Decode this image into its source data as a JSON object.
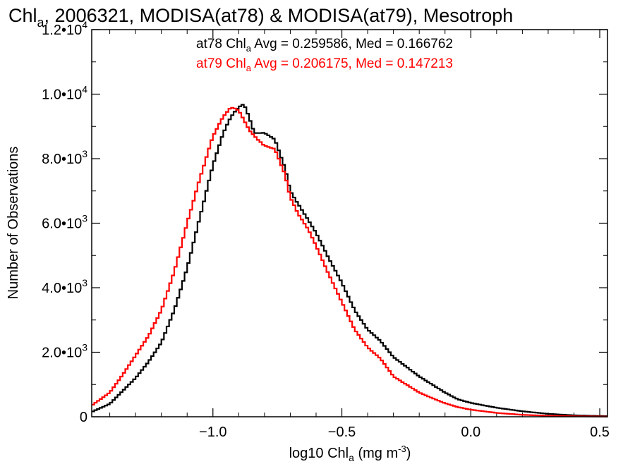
{
  "chart_data": {
    "type": "line",
    "step": true,
    "title": {
      "prefix": "Chl",
      "sub": "a",
      "rest": ", 2006321, MODISA(at78) & MODISA(at79), Mesotroph"
    },
    "xlabel": {
      "prefix": "log10 Chl",
      "sub": "a",
      "mid": " (mg m",
      "sup": "-3",
      "suffix": ")"
    },
    "ylabel": "Number of Observations",
    "xlim": [
      -1.47,
      0.53
    ],
    "ylim": [
      0,
      12000
    ],
    "x_ticks": [
      {
        "value": -1.0,
        "label": "−1.0"
      },
      {
        "value": -0.5,
        "label": "−0.5"
      },
      {
        "value": 0.0,
        "label": "0.0"
      },
      {
        "value": 0.5,
        "label": "0.5"
      }
    ],
    "y_ticks": [
      {
        "value": 0,
        "mant": "0",
        "exp": ""
      },
      {
        "value": 2000,
        "mant": "2.0•10",
        "exp": "3"
      },
      {
        "value": 4000,
        "mant": "4.0•10",
        "exp": "3"
      },
      {
        "value": 6000,
        "mant": "6.0•10",
        "exp": "3"
      },
      {
        "value": 8000,
        "mant": "8.0•10",
        "exp": "3"
      },
      {
        "value": 10000,
        "mant": "1.0•10",
        "exp": "4"
      },
      {
        "value": 12000,
        "mant": "1.2•10",
        "exp": "4"
      }
    ],
    "grid": false,
    "annotations": [
      {
        "series": "at78",
        "prefix": "at78 Chl",
        "sub": "a",
        "rest": " Avg = 0.259586, Med = 0.166762",
        "color": "#000000"
      },
      {
        "series": "at79",
        "prefix": "at79 Chl",
        "sub": "a",
        "rest": " Avg = 0.206175, Med = 0.147213",
        "color": "#ff0000"
      }
    ],
    "series": [
      {
        "key": "at78",
        "color": "#000000",
        "x": [
          -1.47,
          -1.4,
          -1.35,
          -1.3,
          -1.25,
          -1.2,
          -1.15,
          -1.1,
          -1.05,
          -1.0,
          -0.96,
          -0.93,
          -0.9,
          -0.88,
          -0.86,
          -0.84,
          -0.8,
          -0.76,
          -0.72,
          -0.7,
          -0.67,
          -0.63,
          -0.6,
          -0.55,
          -0.5,
          -0.45,
          -0.4,
          -0.35,
          -0.3,
          -0.25,
          -0.2,
          -0.15,
          -0.1,
          -0.05,
          0.0,
          0.1,
          0.2,
          0.3,
          0.4,
          0.53
        ],
        "y": [
          150,
          400,
          800,
          1200,
          1700,
          2300,
          3300,
          4600,
          6200,
          7800,
          8800,
          9300,
          9600,
          9700,
          9300,
          8800,
          8800,
          8600,
          7700,
          7000,
          6600,
          6100,
          5700,
          4900,
          4150,
          3300,
          2700,
          2350,
          1850,
          1550,
          1250,
          1000,
          750,
          540,
          430,
          280,
          170,
          90,
          45,
          20
        ]
      },
      {
        "key": "at79",
        "color": "#ff0000",
        "x": [
          -1.47,
          -1.4,
          -1.35,
          -1.3,
          -1.25,
          -1.2,
          -1.15,
          -1.1,
          -1.05,
          -1.0,
          -0.96,
          -0.93,
          -0.9,
          -0.88,
          -0.86,
          -0.84,
          -0.8,
          -0.76,
          -0.72,
          -0.7,
          -0.67,
          -0.63,
          -0.6,
          -0.55,
          -0.5,
          -0.45,
          -0.4,
          -0.35,
          -0.3,
          -0.25,
          -0.2,
          -0.15,
          -0.1,
          -0.05,
          0.0,
          0.1,
          0.2,
          0.3,
          0.4,
          0.53
        ],
        "y": [
          350,
          750,
          1300,
          1900,
          2500,
          3300,
          4500,
          6000,
          7400,
          8700,
          9300,
          9600,
          9500,
          9200,
          8900,
          8700,
          8400,
          8300,
          7500,
          6800,
          6300,
          5800,
          5300,
          4400,
          3550,
          2700,
          2150,
          1800,
          1250,
          1000,
          750,
          580,
          420,
          300,
          220,
          120,
          60,
          30,
          15,
          5
        ]
      }
    ]
  }
}
